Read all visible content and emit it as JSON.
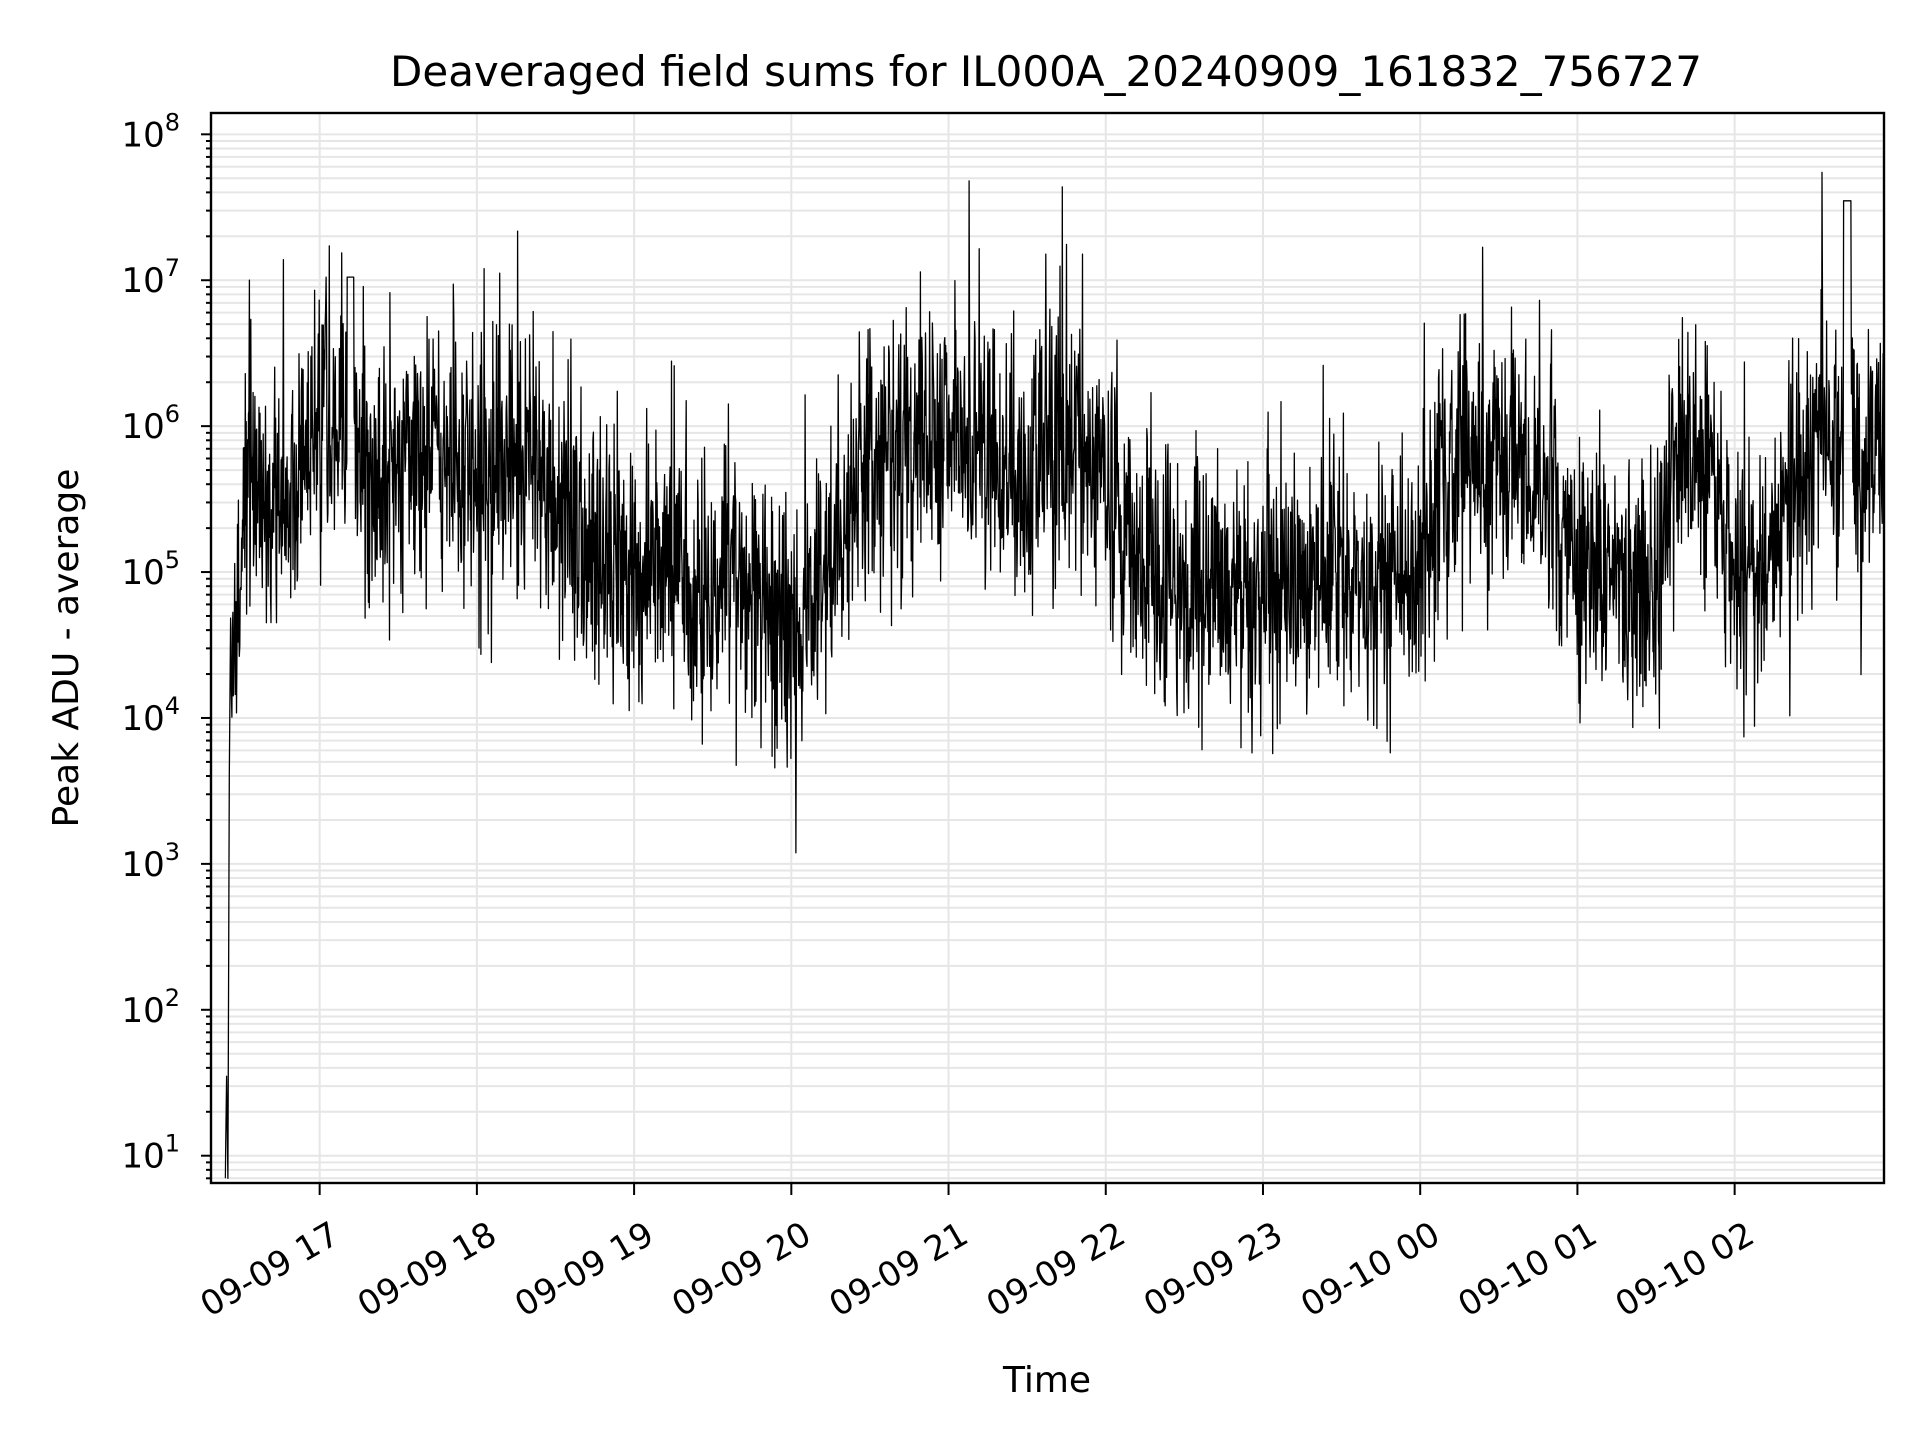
{
  "chart_data": {
    "type": "line",
    "title": "Deaveraged field sums for IL000A_20240909_161832_756727",
    "xlabel": "Time",
    "ylabel": "Peak ADU - average",
    "yscale": "log",
    "ylim": [
      6.5,
      140000000
    ],
    "xlim": [
      "2024-09-09 16:18:32",
      "2024-09-10 02:57:00"
    ],
    "grid": true,
    "line_color": "#000000",
    "grid_color": "#e6e6e6",
    "x_ticks": [
      {
        "value": "2024-09-09 17:00",
        "label": "09-09 17"
      },
      {
        "value": "2024-09-09 18:00",
        "label": "09-09 18"
      },
      {
        "value": "2024-09-09 19:00",
        "label": "09-09 19"
      },
      {
        "value": "2024-09-09 20:00",
        "label": "09-09 20"
      },
      {
        "value": "2024-09-09 21:00",
        "label": "09-09 21"
      },
      {
        "value": "2024-09-09 22:00",
        "label": "09-09 22"
      },
      {
        "value": "2024-09-09 23:00",
        "label": "09-09 23"
      },
      {
        "value": "2024-09-10 00:00",
        "label": "09-10 00"
      },
      {
        "value": "2024-09-10 01:00",
        "label": "09-10 01"
      },
      {
        "value": "2024-09-10 02:00",
        "label": "09-10 02"
      }
    ],
    "y_ticks": [
      {
        "value": 10,
        "base": "10",
        "exp": "1"
      },
      {
        "value": 100,
        "base": "10",
        "exp": "2"
      },
      {
        "value": 1000,
        "base": "10",
        "exp": "3"
      },
      {
        "value": 10000,
        "base": "10",
        "exp": "4"
      },
      {
        "value": 100000,
        "base": "10",
        "exp": "5"
      },
      {
        "value": 1000000,
        "base": "10",
        "exp": "6"
      },
      {
        "value": 10000000,
        "base": "10",
        "exp": "7"
      },
      {
        "value": 100000000,
        "base": "10",
        "exp": "8"
      }
    ],
    "series": [
      {
        "x": [
          "2024-09-09 16:24:00",
          "2024-09-09 16:24:30",
          "2024-09-09 16:25:00",
          "2024-09-09 16:25:30",
          "2024-09-09 16:26:00",
          "2024-09-09 16:27:00",
          "2024-09-09 16:28:00",
          "2024-09-09 16:29:00",
          "2024-09-09 16:31:00",
          "2024-09-09 16:33:00",
          "2024-09-09 16:35:00",
          "2024-09-09 16:40:00",
          "2024-09-09 16:45:00",
          "2024-09-09 16:50:00",
          "2024-09-09 16:55:00",
          "2024-09-09 17:00:00",
          "2024-09-09 17:05:00",
          "2024-09-09 17:10:00",
          "2024-09-09 17:11:00",
          "2024-09-09 17:15:00",
          "2024-09-09 17:20:00",
          "2024-09-09 17:25:00",
          "2024-09-09 17:30:00",
          "2024-09-09 17:35:00",
          "2024-09-09 17:40:00",
          "2024-09-09 17:45:00",
          "2024-09-09 17:50:00",
          "2024-09-09 17:55:00",
          "2024-09-09 18:00:00",
          "2024-09-09 18:10:00",
          "2024-09-09 18:20:00",
          "2024-09-09 18:30:00",
          "2024-09-09 18:40:00",
          "2024-09-09 18:50:00",
          "2024-09-09 19:00:00",
          "2024-09-09 19:10:00",
          "2024-09-09 19:20:00",
          "2024-09-09 19:30:00",
          "2024-09-09 19:40:00",
          "2024-09-09 19:50:00",
          "2024-09-09 20:00:00",
          "2024-09-09 20:10:00",
          "2024-09-09 20:20:00",
          "2024-09-09 20:30:00",
          "2024-09-09 20:40:00",
          "2024-09-09 20:50:00",
          "2024-09-09 21:00:00",
          "2024-09-09 21:10:00",
          "2024-09-09 21:20:00",
          "2024-09-09 21:30:00",
          "2024-09-09 21:40:00",
          "2024-09-09 21:50:00",
          "2024-09-09 22:00:00",
          "2024-09-09 22:10:00",
          "2024-09-09 22:20:00",
          "2024-09-09 22:30:00",
          "2024-09-09 22:40:00",
          "2024-09-09 22:50:00",
          "2024-09-09 23:00:00",
          "2024-09-09 23:10:00",
          "2024-09-09 23:20:00",
          "2024-09-09 23:30:00",
          "2024-09-09 23:40:00",
          "2024-09-09 23:50:00",
          "2024-09-10 00:00:00",
          "2024-09-10 00:10:00",
          "2024-09-10 00:20:00",
          "2024-09-10 00:30:00",
          "2024-09-10 00:40:00",
          "2024-09-10 00:50:00",
          "2024-09-10 01:00:00",
          "2024-09-10 01:10:00",
          "2024-09-10 01:20:00",
          "2024-09-10 01:30:00",
          "2024-09-10 01:40:00",
          "2024-09-10 01:50:00",
          "2024-09-10 02:00:00",
          "2024-09-10 02:10:00",
          "2024-09-10 02:20:00",
          "2024-09-10 02:30:00",
          "2024-09-10 02:40:00",
          "2024-09-10 02:43:00",
          "2024-09-10 02:46:00",
          "2024-09-10 02:50:00",
          "2024-09-10 02:55:00",
          "2024-09-10 02:57:00"
        ],
        "y": [
          7,
          35,
          7,
          4000,
          20000,
          35000,
          32000,
          60000,
          150000,
          500000,
          300000,
          200000,
          300000,
          600000,
          800000,
          1000000,
          1200000,
          600000,
          10500000,
          600000,
          400000,
          500000,
          700000,
          600000,
          800000,
          900000,
          700000,
          600000,
          400000,
          500000,
          700000,
          300000,
          150000,
          100000,
          100000,
          100000,
          80000,
          70000,
          80000,
          60000,
          50000,
          70000,
          200000,
          700000,
          800000,
          700000,
          700000,
          700000,
          500000,
          600000,
          700000,
          800000,
          400000,
          150000,
          80000,
          70000,
          80000,
          60000,
          70000,
          80000,
          70000,
          80000,
          90000,
          100000,
          100000,
          400000,
          600000,
          700000,
          500000,
          300000,
          100000,
          80000,
          80000,
          100000,
          600000,
          600000,
          100000,
          80000,
          300000,
          700000,
          800000,
          35000000,
          800000,
          700000,
          800000,
          700000
        ],
        "noise": {
          "mode": "log-amplitude",
          "decades": 0.45
        }
      }
    ]
  }
}
